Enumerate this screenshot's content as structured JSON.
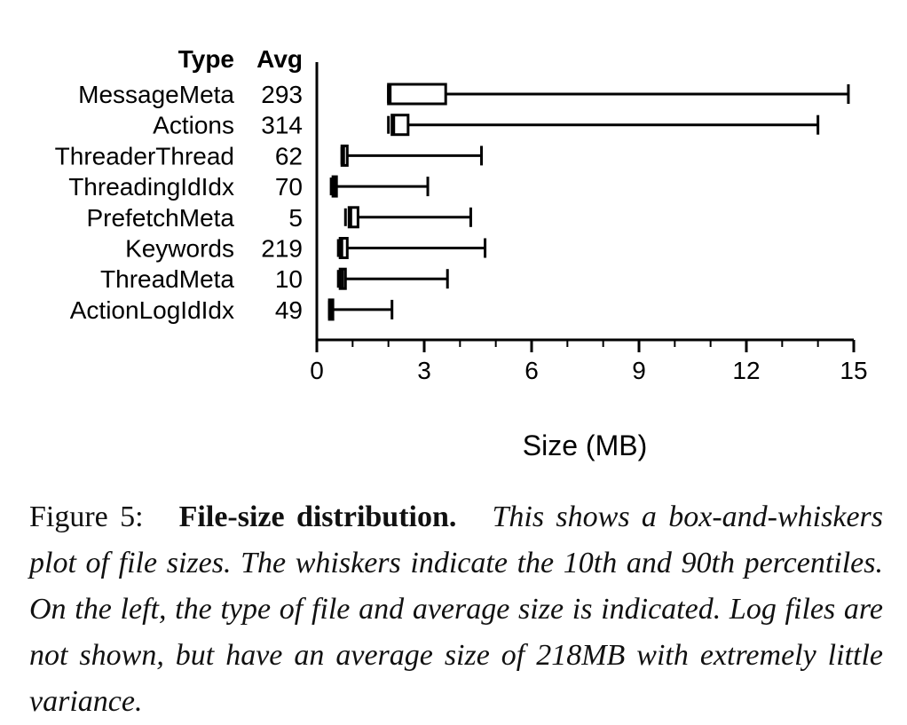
{
  "chart_data": {
    "type": "boxplot",
    "orientation": "horizontal",
    "header": {
      "type_label": "Type",
      "avg_label": "Avg"
    },
    "categories": [
      "MessageMeta",
      "Actions",
      "ThreaderThread",
      "ThreadingIdIdx",
      "PrefetchMeta",
      "Keywords",
      "ThreadMeta",
      "ActionLogIdIdx"
    ],
    "averages": [
      "293",
      "314",
      "62",
      "70",
      "5",
      "219",
      "10",
      "49"
    ],
    "boxes": [
      {
        "p10": 2.0,
        "q1": 2.0,
        "median": 2.05,
        "q3": 3.6,
        "p90": 14.85
      },
      {
        "p10": 2.0,
        "q1": 2.1,
        "median": 2.15,
        "q3": 2.55,
        "p90": 14.0
      },
      {
        "p10": 0.7,
        "q1": 0.7,
        "median": 0.75,
        "q3": 0.85,
        "p90": 4.6
      },
      {
        "p10": 0.4,
        "q1": 0.45,
        "median": 0.5,
        "q3": 0.55,
        "p90": 3.1
      },
      {
        "p10": 0.8,
        "q1": 0.9,
        "median": 0.95,
        "q3": 1.15,
        "p90": 4.3
      },
      {
        "p10": 0.6,
        "q1": 0.65,
        "median": 0.7,
        "q3": 0.85,
        "p90": 4.7
      },
      {
        "p10": 0.6,
        "q1": 0.65,
        "median": 0.72,
        "q3": 0.8,
        "p90": 3.65
      },
      {
        "p10": 0.35,
        "q1": 0.35,
        "median": 0.4,
        "q3": 0.42,
        "p90": 2.1
      }
    ],
    "xlabel": "Size (MB)",
    "xlim": [
      0,
      15
    ],
    "xticks": [
      0,
      3,
      6,
      9,
      12,
      15
    ],
    "xtick_labels": [
      "0",
      "3",
      "6",
      "9",
      "12",
      "15"
    ],
    "minor_tick_step": 1,
    "grid": false
  },
  "caption": {
    "number": "Figure 5:",
    "title": "File-size distribution.",
    "body": "This shows a box-and-whiskers plot of file sizes. The whiskers indicate the 10th and 90th percentiles. On the left, the type of file and average size is indicated. Log files are not shown, but have an average size of 218MB with extremely little variance."
  }
}
